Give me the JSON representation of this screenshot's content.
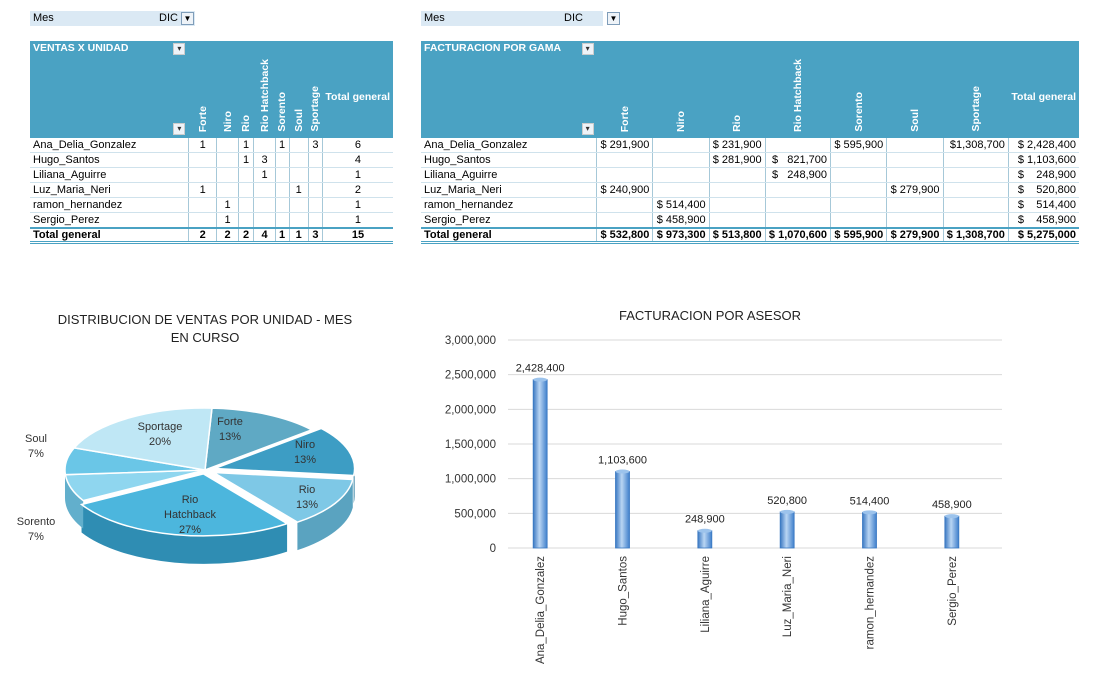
{
  "filters": {
    "left": {
      "label": "Mes",
      "value": "DIC"
    },
    "right": {
      "label": "Mes",
      "value": "DIC"
    }
  },
  "units_table": {
    "title": "VENTAS X UNIDAD",
    "columns": [
      "Forte",
      "Niro",
      "Rio",
      "Rio Hatchback",
      "Sorento",
      "Soul",
      "Sportage"
    ],
    "total_label": "Total general",
    "rows": [
      {
        "name": "Ana_Delia_Gonzalez",
        "cells": [
          "1",
          "",
          "1",
          "",
          "1",
          "",
          "3"
        ],
        "total": "6"
      },
      {
        "name": "Hugo_Santos",
        "cells": [
          "",
          "",
          "1",
          "3",
          "",
          "",
          ""
        ],
        "total": "4"
      },
      {
        "name": "Liliana_Aguirre",
        "cells": [
          "",
          "",
          "",
          "1",
          "",
          "",
          ""
        ],
        "total": "1"
      },
      {
        "name": "Luz_Maria_Neri",
        "cells": [
          "1",
          "",
          "",
          "",
          "",
          "1",
          ""
        ],
        "total": "2"
      },
      {
        "name": "ramon_hernandez",
        "cells": [
          "",
          "1",
          "",
          "",
          "",
          "",
          ""
        ],
        "total": "1"
      },
      {
        "name": "Sergio_Perez",
        "cells": [
          "",
          "1",
          "",
          "",
          "",
          "",
          ""
        ],
        "total": "1"
      }
    ],
    "totals": {
      "name": "Total general",
      "cells": [
        "2",
        "2",
        "2",
        "4",
        "1",
        "1",
        "3"
      ],
      "total": "15"
    }
  },
  "billing_table": {
    "title": "FACTURACION POR GAMA",
    "columns": [
      "Forte",
      "Niro",
      "Rio",
      "Rio Hatchback",
      "Sorento",
      "Soul",
      "Sportage"
    ],
    "total_label": "Total general",
    "rows": [
      {
        "name": "Ana_Delia_Gonzalez",
        "cells": [
          "$ 291,900",
          "",
          "$ 231,900",
          "",
          "$ 595,900",
          "",
          "$1,308,700"
        ],
        "total": "$ 2,428,400"
      },
      {
        "name": "Hugo_Santos",
        "cells": [
          "",
          "",
          "$ 281,900",
          "$   821,700",
          "",
          "",
          ""
        ],
        "total": "$ 1,103,600"
      },
      {
        "name": "Liliana_Aguirre",
        "cells": [
          "",
          "",
          "",
          "$   248,900",
          "",
          "",
          ""
        ],
        "total": "$    248,900"
      },
      {
        "name": "Luz_Maria_Neri",
        "cells": [
          "$ 240,900",
          "",
          "",
          "",
          "",
          "$ 279,900",
          ""
        ],
        "total": "$    520,800"
      },
      {
        "name": "ramon_hernandez",
        "cells": [
          "",
          "$ 514,400",
          "",
          "",
          "",
          "",
          ""
        ],
        "total": "$    514,400"
      },
      {
        "name": "Sergio_Perez",
        "cells": [
          "",
          "$ 458,900",
          "",
          "",
          "",
          "",
          ""
        ],
        "total": "$    458,900"
      }
    ],
    "totals": {
      "name": "Total general",
      "cells": [
        "$ 532,800",
        "$ 973,300",
        "$ 513,800",
        "$ 1,070,600",
        "$ 595,900",
        "$ 279,900",
        "$ 1,308,700"
      ],
      "total": "$ 5,275,000"
    }
  },
  "chart_data": [
    {
      "type": "pie",
      "title": "DISTRIBUCION DE VENTAS POR UNIDAD - MES EN CURSO",
      "slices": [
        {
          "label": "Forte",
          "value": 13,
          "display": "13%"
        },
        {
          "label": "Niro",
          "value": 13,
          "display": "13%"
        },
        {
          "label": "Rio",
          "value": 13,
          "display": "13%"
        },
        {
          "label": "Rio Hatchback",
          "value": 27,
          "display": "27%"
        },
        {
          "label": "Sorento",
          "value": 7,
          "display": "7%"
        },
        {
          "label": "Soul",
          "value": 7,
          "display": "7%"
        },
        {
          "label": "Sportage",
          "value": 20,
          "display": "20%"
        }
      ]
    },
    {
      "type": "bar",
      "title": "FACTURACION POR ASESOR",
      "categories": [
        "Ana_Delia_Gonzalez",
        "Hugo_Santos",
        "Liliana_Aguirre",
        "Luz_Maria_Neri",
        "ramon_hernandez",
        "Sergio_Perez"
      ],
      "values": [
        2428400,
        1103600,
        248900,
        520800,
        514400,
        458900
      ],
      "value_labels": [
        "2,428,400",
        "1,103,600",
        "248,900",
        "520,800",
        "514,400",
        "458,900"
      ],
      "ylim": [
        0,
        3000000
      ],
      "yticks": [
        "0",
        "500,000",
        "1,000,000",
        "1,500,000",
        "2,000,000",
        "2,500,000",
        "3,000,000"
      ],
      "grid": true,
      "color": "#5b9bd5"
    }
  ]
}
